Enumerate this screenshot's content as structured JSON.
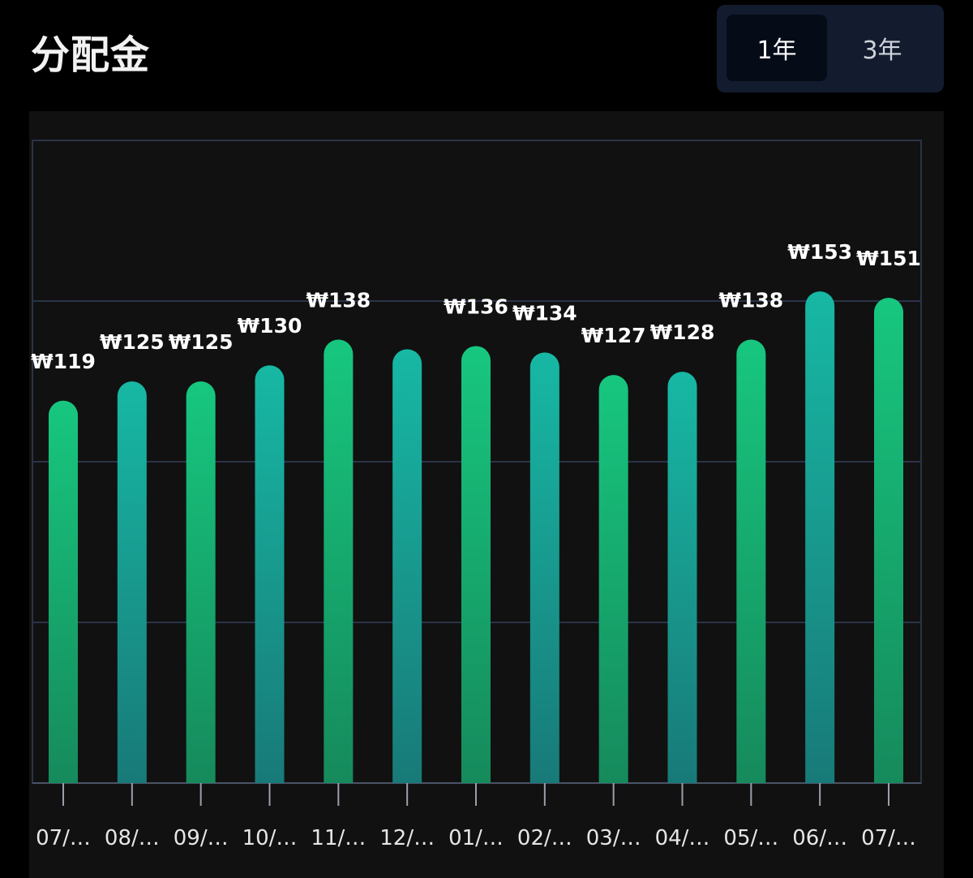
{
  "header": {
    "title": "分配金"
  },
  "toggle": {
    "options": [
      "1年",
      "3年"
    ],
    "selected": "1年"
  },
  "colors": {
    "bar_green_top": "#17c77f",
    "bar_green_bottom": "#168a5c",
    "bar_teal_top": "#17b8a4",
    "bar_teal_bottom": "#187a78",
    "grid": "#2a3348",
    "panel": "#111111"
  },
  "chart_data": {
    "type": "bar",
    "categories": [
      "07/…",
      "08/…",
      "09/…",
      "10/…",
      "11/…",
      "12/…",
      "01/…",
      "02/…",
      "03/…",
      "04/…",
      "05/…",
      "06/…",
      "07/…"
    ],
    "values": [
      119,
      125,
      125,
      130,
      138,
      135,
      136,
      134,
      127,
      128,
      138,
      153,
      151
    ],
    "data_labels": [
      "₩119",
      "₩125",
      "₩125",
      "₩130",
      "₩138",
      "",
      "₩136",
      "₩134",
      "₩127",
      "₩128",
      "₩138",
      "₩153",
      "₩151"
    ],
    "ylim": [
      0,
      200
    ],
    "y_gridlines": [
      50,
      100,
      150,
      200
    ],
    "bar_style": [
      "green",
      "teal",
      "green",
      "teal",
      "green",
      "teal",
      "green",
      "teal",
      "green",
      "teal",
      "green",
      "teal",
      "green"
    ],
    "grid": true
  }
}
